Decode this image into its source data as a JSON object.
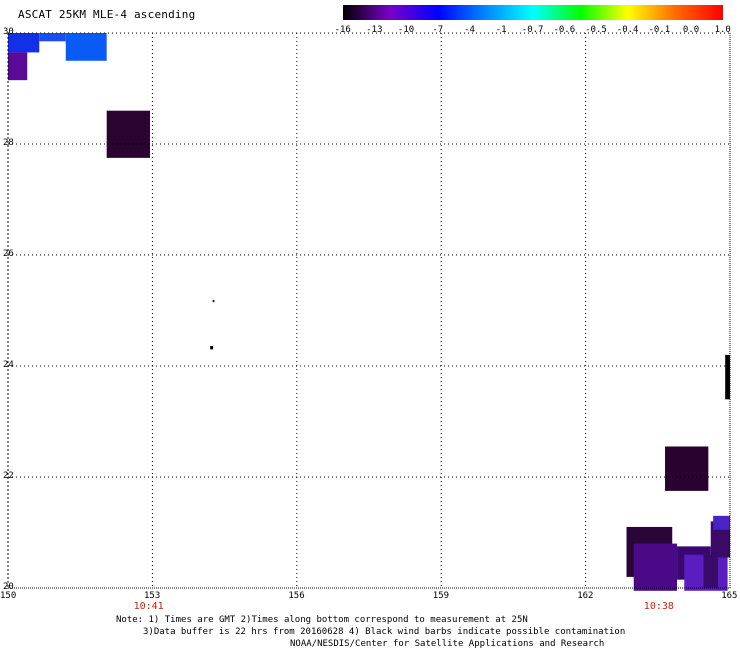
{
  "title": "ASCAT 25KM MLE-4 ascending",
  "colorbar": {
    "labels": [
      "-16",
      "-13",
      "-10",
      "-7",
      "-4",
      "-1",
      "-0.7",
      "-0.6",
      "-0.5",
      "-0.4",
      "-0.1",
      "0.0",
      "1.0"
    ],
    "colors": [
      "#000000",
      "#7a00c8",
      "#0000ff",
      "#0088ff",
      "#00ffff",
      "#00ff00",
      "#ffff00",
      "#ff6a00",
      "#ff0000"
    ]
  },
  "map": {
    "lon_labels": [
      "150",
      "153",
      "156",
      "159",
      "162",
      "165"
    ],
    "lat_labels": [
      "30",
      "28",
      "26",
      "24",
      "22",
      "20"
    ],
    "lon_range": [
      150,
      165
    ],
    "lat_range": [
      20,
      30
    ],
    "grid": "dotted",
    "times": [
      {
        "label": "10:41",
        "lon": 152.9
      },
      {
        "label": "10:38",
        "lon": 163.5
      }
    ],
    "cells": [
      {
        "lon0": 150.0,
        "lon1": 150.65,
        "lat0": 29.65,
        "lat1": 30.0,
        "color": "#1230e8"
      },
      {
        "lon0": 150.65,
        "lon1": 151.2,
        "lat0": 29.85,
        "lat1": 30.0,
        "color": "#1a4df0"
      },
      {
        "lon0": 151.2,
        "lon1": 152.05,
        "lat0": 29.5,
        "lat1": 30.0,
        "color": "#0a5af6"
      },
      {
        "lon0": 150.0,
        "lon1": 150.4,
        "lat0": 29.15,
        "lat1": 29.65,
        "color": "#5a0a96"
      },
      {
        "lon0": 152.05,
        "lon1": 152.95,
        "lat0": 27.75,
        "lat1": 28.6,
        "color": "#2b0331"
      },
      {
        "lon0": 154.25,
        "lon1": 154.29,
        "lat0": 25.15,
        "lat1": 25.19,
        "color": "#222222"
      },
      {
        "lon0": 154.2,
        "lon1": 154.26,
        "lat0": 24.3,
        "lat1": 24.36,
        "color": "#000000"
      },
      {
        "lon0": 164.9,
        "lon1": 165.0,
        "lat0": 23.4,
        "lat1": 24.2,
        "color": "#000000"
      },
      {
        "lon0": 163.65,
        "lon1": 164.55,
        "lat0": 21.75,
        "lat1": 22.55,
        "color": "#2a0230"
      },
      {
        "lon0": 162.85,
        "lon1": 163.8,
        "lat0": 20.2,
        "lat1": 21.1,
        "color": "#2a0538"
      },
      {
        "lon0": 163.0,
        "lon1": 163.9,
        "lat0": 19.95,
        "lat1": 20.8,
        "color": "#4a0a88"
      },
      {
        "lon0": 163.9,
        "lon1": 164.6,
        "lat0": 20.15,
        "lat1": 20.75,
        "color": "#3a0670"
      },
      {
        "lon0": 164.05,
        "lon1": 164.95,
        "lat0": 19.95,
        "lat1": 20.6,
        "color": "#5a1ec0"
      },
      {
        "lon0": 164.6,
        "lon1": 165.0,
        "lat0": 20.55,
        "lat1": 21.2,
        "color": "#3a0a66"
      },
      {
        "lon0": 164.65,
        "lon1": 165.0,
        "lat0": 21.05,
        "lat1": 21.3,
        "color": "#4a22c8"
      },
      {
        "lon0": 164.45,
        "lon1": 164.75,
        "lat0": 20.0,
        "lat1": 20.6,
        "color": "#3a0a6a"
      }
    ]
  },
  "notes": {
    "line1": "Note: 1) Times are GMT 2)Times along bottom correspond to measurement at 25N",
    "line2": "3)Data buffer is 22 hrs from 20160628 4) Black wind barbs indicate possible contamination",
    "line3": "NOAA/NESDIS/Center for Satellite Applications and Research"
  }
}
